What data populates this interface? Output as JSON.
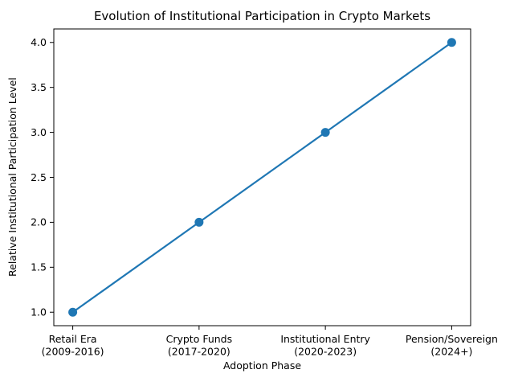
{
  "chart_data": {
    "type": "line",
    "title": "Evolution of Institutional Participation in Crypto Markets",
    "xlabel": "Adoption Phase",
    "ylabel": "Relative Institutional Participation Level",
    "categories": [
      [
        "Retail Era",
        "(2009-2016)"
      ],
      [
        "Crypto Funds",
        "(2017-2020)"
      ],
      [
        "Institutional Entry",
        "(2020-2023)"
      ],
      [
        "Pension/Sovereign",
        "(2024+)"
      ]
    ],
    "series": [
      {
        "name": "Relative Institutional Participation Level",
        "values": [
          1,
          2,
          3,
          4
        ]
      }
    ],
    "yticks": [
      1.0,
      1.5,
      2.0,
      2.5,
      3.0,
      3.5,
      4.0
    ],
    "ylim": [
      0.85,
      4.15
    ],
    "x_margin": 0.15,
    "grid": false,
    "legend": null,
    "marker": "circle",
    "colors": {
      "line": "#1f77b4",
      "marker": "#1f77b4",
      "axis": "#000000",
      "text": "#000000",
      "background": "#ffffff"
    }
  }
}
